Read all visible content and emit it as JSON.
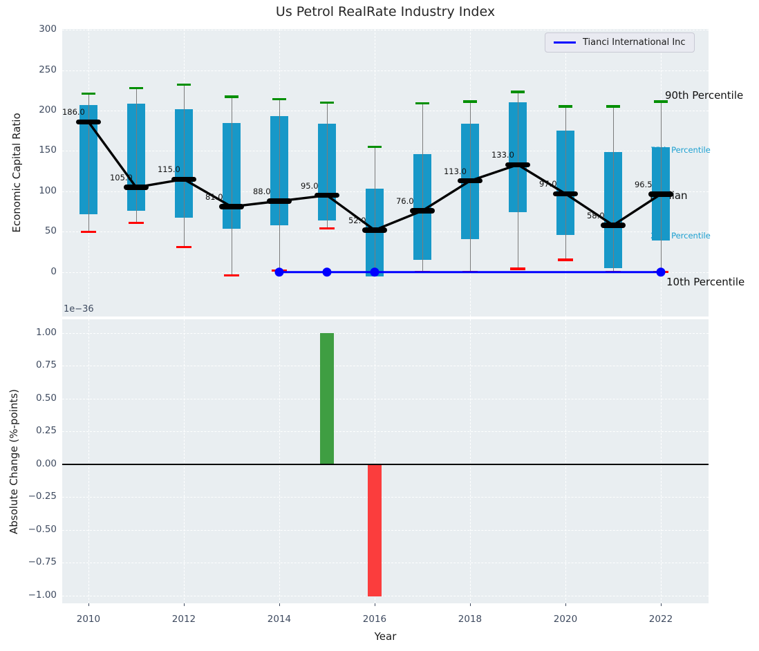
{
  "title": "Us Petrol RealRate Industry Index",
  "legend": {
    "label": "Tianci International Inc"
  },
  "top_chart": {
    "ylabel": "Economic Capital Ratio",
    "ytick_labels": [
      "0",
      "50",
      "100",
      "150",
      "200",
      "250",
      "300"
    ],
    "annotations": {
      "p90": "90th Percentile",
      "p75": "75th Percentile",
      "median": "Median",
      "p25": "25th Percentile",
      "p10": "10th Percentile"
    }
  },
  "bottom_chart": {
    "ylabel": "Absolute Change (%-points)",
    "offset_label": "1e−36",
    "ytick_labels": [
      "1.00",
      "0.75",
      "0.50",
      "0.25",
      "0.00",
      "−0.25",
      "−0.50",
      "−0.75",
      "−1.00"
    ],
    "xlabel": "Year",
    "xtick_labels": [
      "2010",
      "2012",
      "2014",
      "2016",
      "2018",
      "2020",
      "2022"
    ]
  },
  "colors": {
    "box_fill": "#1798c8",
    "cap_90": "#008f00",
    "cap_10": "#ff0000",
    "median": "#000000",
    "company_line": "#0000ff",
    "bar_up": "#3f9e42",
    "bar_down": "#fb3d3d",
    "percentile_text": "#1b9fd0",
    "axes_bg": "#e9eef1"
  },
  "chart_data": [
    {
      "type": "boxplot",
      "title": "Us Petrol RealRate Industry Index",
      "xlabel": "Year",
      "ylabel": "Economic Capital Ratio",
      "ylim": [
        -55,
        301
      ],
      "xlim": [
        2009.45,
        2023.0
      ],
      "yticks": [
        0,
        50,
        100,
        150,
        200,
        250,
        300
      ],
      "xticks": [
        2010,
        2012,
        2014,
        2016,
        2018,
        2020,
        2022
      ],
      "grid": true,
      "years": [
        2010,
        2011,
        2012,
        2013,
        2014,
        2015,
        2016,
        2017,
        2018,
        2019,
        2020,
        2021,
        2022
      ],
      "p90": [
        221,
        228,
        232,
        217,
        214,
        210,
        155,
        209,
        211,
        223,
        205,
        205,
        211
      ],
      "p75": [
        207,
        209,
        202,
        185,
        193,
        184,
        103,
        146,
        184,
        210,
        175,
        149,
        155
      ],
      "median": [
        186,
        105,
        115,
        81,
        88,
        95,
        52,
        76,
        113,
        133,
        97,
        58,
        96.5
      ],
      "p25": [
        72,
        76,
        67,
        54,
        58,
        64,
        -5,
        15,
        41,
        74,
        46,
        5,
        39
      ],
      "p10": [
        50,
        61,
        31,
        -4,
        2,
        54,
        -5,
        0,
        0,
        4,
        15,
        0,
        0
      ],
      "cap10_visible": [
        true,
        true,
        true,
        true,
        true,
        true,
        false,
        true,
        true,
        true,
        true,
        true,
        true
      ],
      "median_labels": [
        "186.0",
        "105.0",
        "115.0",
        "81.0",
        "88.0",
        "95.0",
        "52.0",
        "76.0",
        "113.0",
        "133.0",
        "97.0",
        "58.0",
        "96.5"
      ],
      "overlay_line": {
        "name": "Tianci International Inc",
        "x": [
          2014,
          2015,
          2016,
          2017,
          2018,
          2019,
          2020,
          2021,
          2022
        ],
        "y": [
          0,
          0,
          0,
          0,
          0,
          0,
          0,
          0,
          0
        ],
        "marker_years": [
          2014,
          2015,
          2016,
          2022
        ]
      },
      "legend_position": "upper right"
    },
    {
      "type": "bar",
      "ylabel": "Absolute Change (%-points)",
      "scale_label": "1e−36",
      "ylim_scaled": [
        -1.06,
        1.103
      ],
      "yticks_scaled": [
        1.0,
        0.75,
        0.5,
        0.25,
        0.0,
        -0.25,
        -0.5,
        -0.75,
        -1.0
      ],
      "x": [
        2010,
        2011,
        2012,
        2013,
        2014,
        2015,
        2016,
        2017,
        2018,
        2019,
        2020,
        2021,
        2022
      ],
      "values": [
        0,
        0,
        0,
        0,
        0,
        1e-36,
        -1e-36,
        0,
        0,
        0,
        0,
        0,
        0
      ],
      "values_scaled": [
        0,
        0,
        0,
        0,
        0,
        1.0,
        -1.0,
        0,
        0,
        0,
        0,
        0,
        0
      ],
      "grid": true
    }
  ]
}
